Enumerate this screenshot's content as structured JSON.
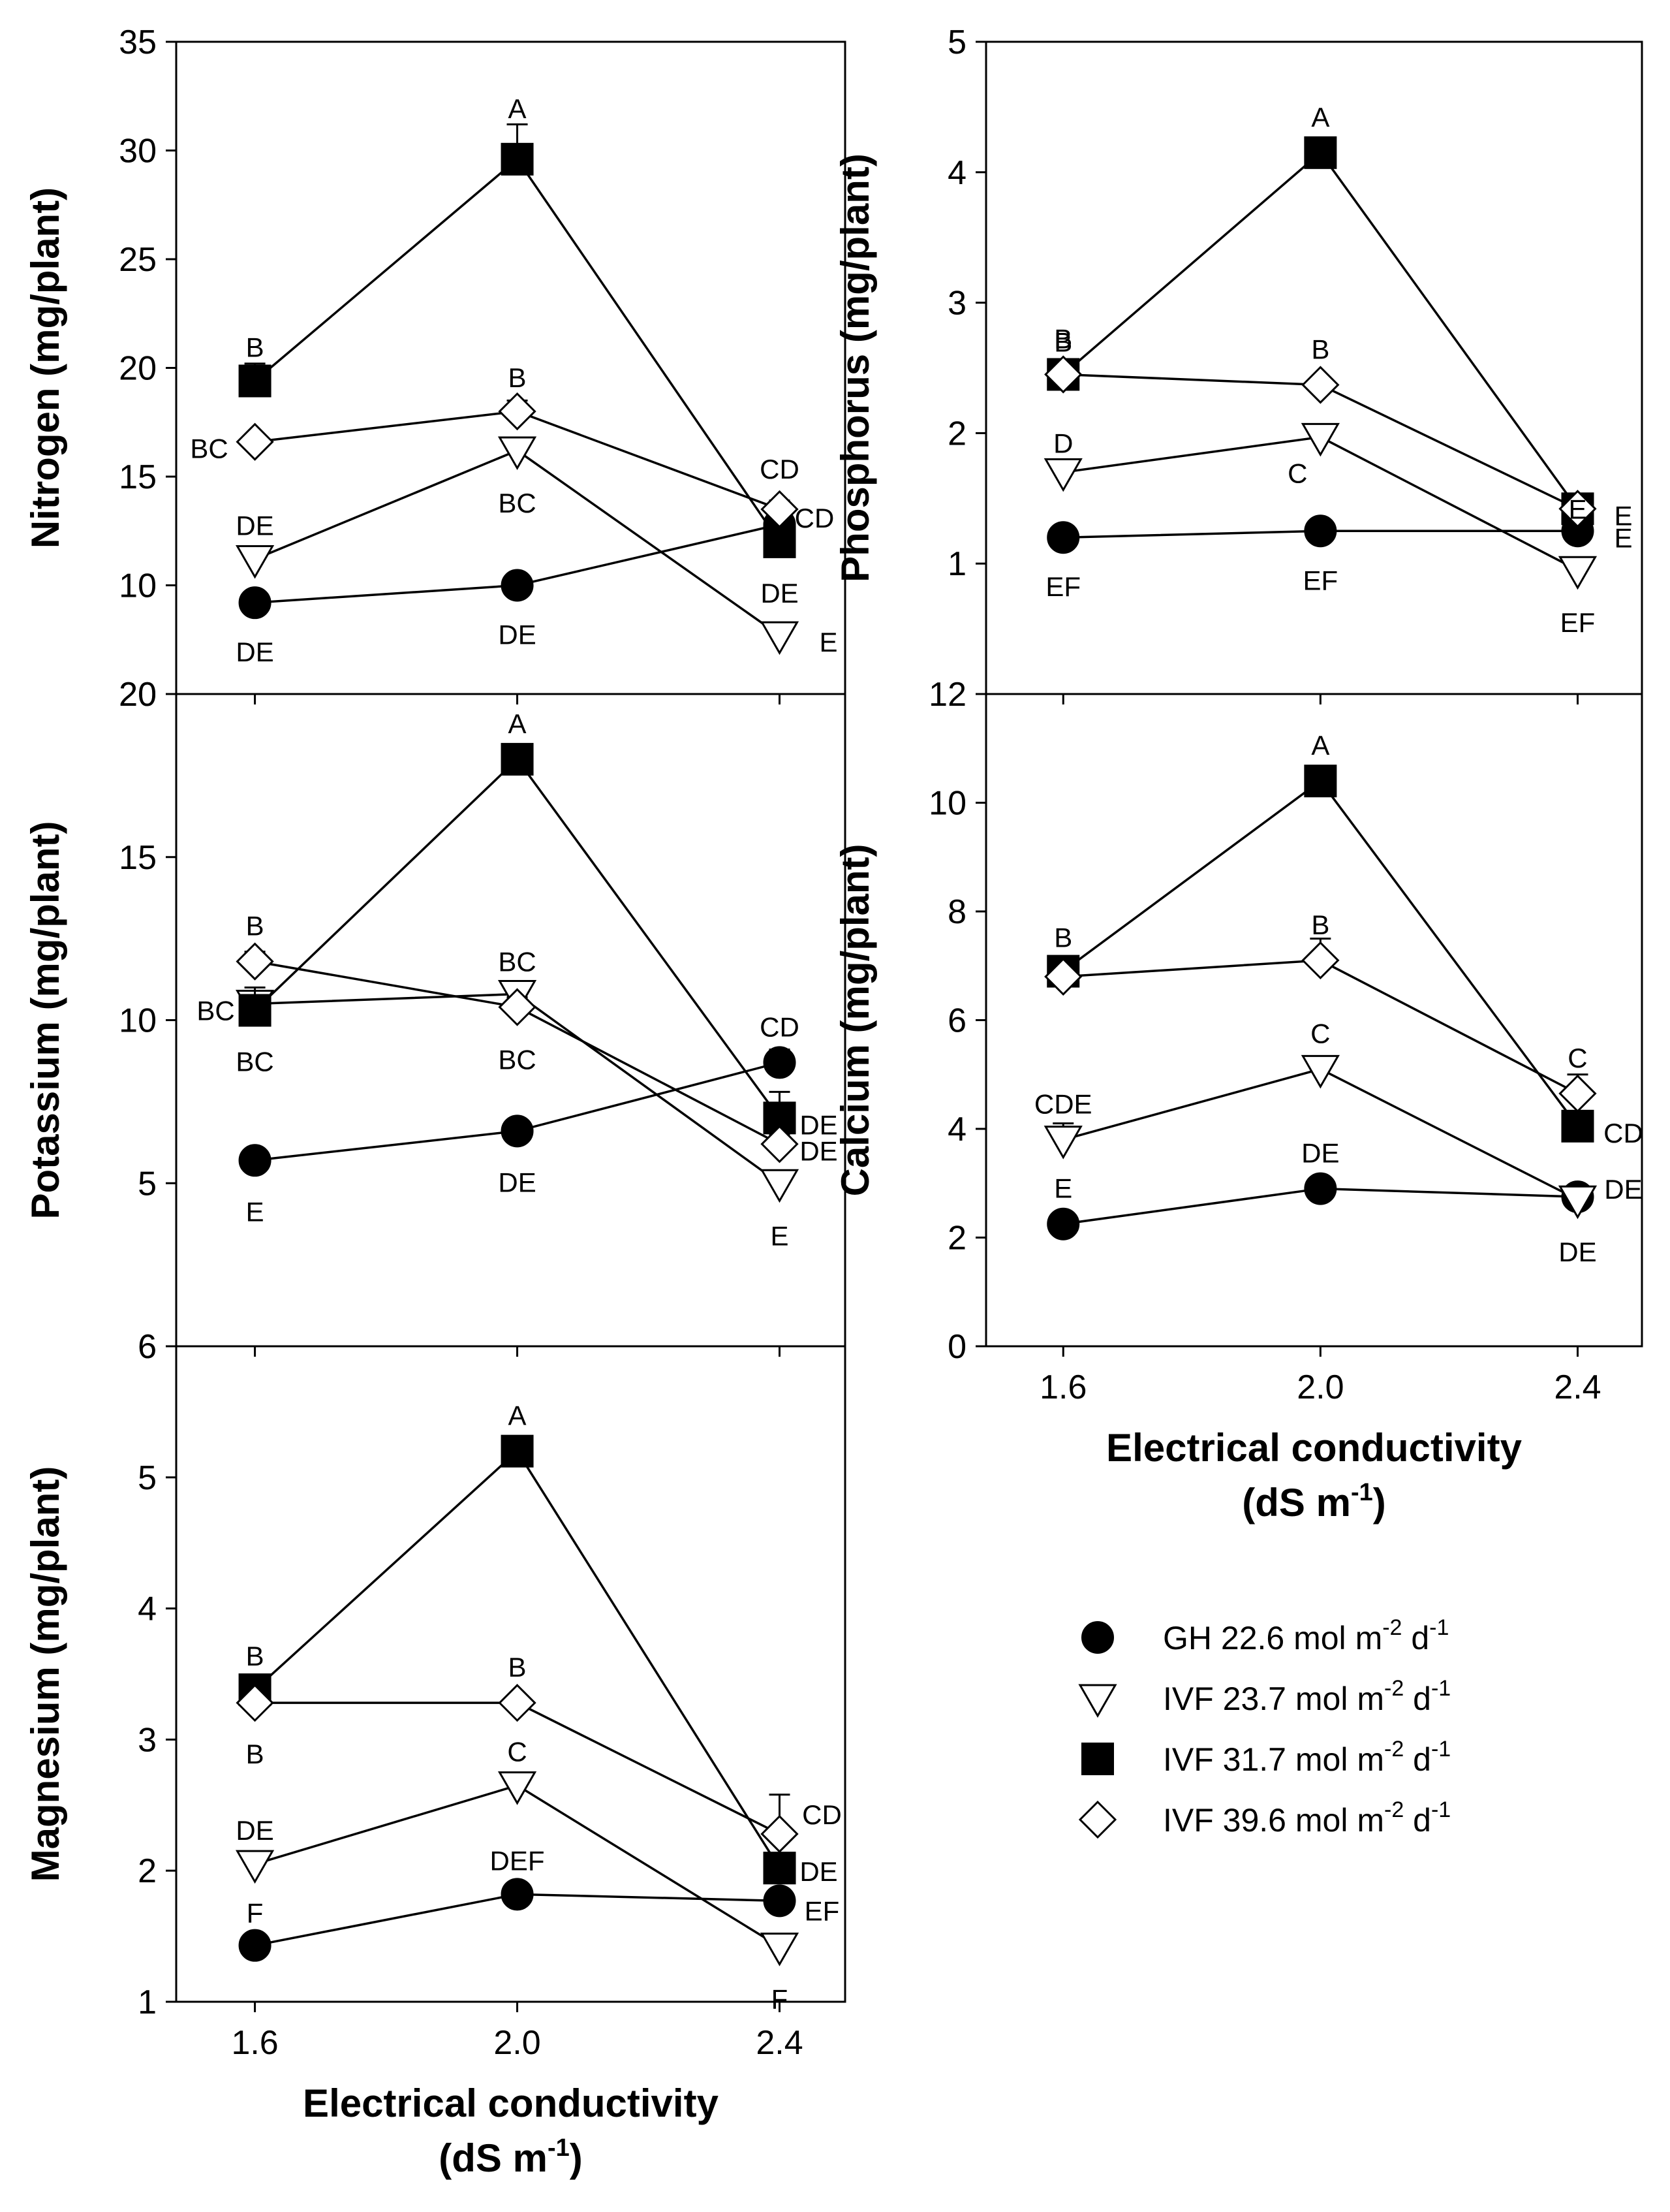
{
  "colors": {
    "ink": "#000000",
    "open_fill": "#ffffff"
  },
  "legend": {
    "placement": "right",
    "entries": [
      {
        "marker": "circle-filled",
        "parts": [
          "GH 22.6 mol ",
          "m",
          "-2",
          " d",
          "-1"
        ]
      },
      {
        "marker": "triangle-down-open",
        "parts": [
          "IVF 23.7 mol m",
          "-2",
          " d",
          "-1"
        ]
      },
      {
        "marker": "square-filled",
        "parts": [
          "IVF 31.7 mol m",
          "-2",
          " d",
          "-1"
        ]
      },
      {
        "marker": "diamond-open",
        "parts": [
          "IVF 39.6 mol m",
          "-2",
          " d",
          "-1"
        ]
      }
    ]
  },
  "x_axis": {
    "title_line1": "Electrical conductivity",
    "title_line2_parts": [
      "(dS m",
      "-1",
      ")"
    ],
    "ticks": [
      1.6,
      2.0,
      2.4
    ],
    "tick_labels": [
      "1.6",
      "2.0",
      "2.4"
    ],
    "xlim": [
      1.48,
      2.5
    ]
  },
  "chart_data": [
    {
      "type": "line",
      "panel": "nitrogen",
      "ylabel": "Nitrogen (mg/plant)",
      "x": [
        1.6,
        2.0,
        2.4
      ],
      "ylim": [
        5,
        35
      ],
      "yticks": [
        10,
        15,
        20,
        25,
        30,
        35
      ],
      "ytick_labels": [
        "10",
        "15",
        "20",
        "25",
        "30",
        "35"
      ],
      "bottom_tick_label": "20",
      "series": [
        {
          "marker": "circle-filled",
          "values": [
            9.2,
            10.0,
            12.8
          ],
          "errors": [
            0.3,
            0.3,
            0.3
          ],
          "letters": [
            "DE",
            "DE",
            ""
          ]
        },
        {
          "marker": "triangle-down-open",
          "values": [
            11.2,
            16.2,
            7.7
          ],
          "errors": [
            0.3,
            0.4,
            0.3
          ],
          "letters": [
            "DE",
            "BC",
            "E"
          ]
        },
        {
          "marker": "square-filled",
          "values": [
            19.4,
            29.6,
            12.0
          ],
          "errors": [
            0.8,
            1.6,
            0.6
          ],
          "letters": [
            "B",
            "A",
            "DE"
          ]
        },
        {
          "marker": "diamond-open",
          "values": [
            16.6,
            18.0,
            13.5
          ],
          "errors": [
            0.3,
            0.5,
            0.4
          ],
          "letters": [
            "BC",
            "B",
            "CD"
          ]
        }
      ],
      "extra_letters": [
        "CD"
      ]
    },
    {
      "type": "line",
      "panel": "phosphorus",
      "ylabel": "Phosphorus (mg/plant)",
      "x": [
        1.6,
        2.0,
        2.4
      ],
      "ylim": [
        0,
        5
      ],
      "yticks": [
        1,
        2,
        3,
        4,
        5
      ],
      "ytick_labels": [
        "1",
        "2",
        "3",
        "4",
        "5"
      ],
      "series": [
        {
          "marker": "circle-filled",
          "values": [
            1.2,
            1.25,
            1.25
          ],
          "errors": [
            0.03,
            0.03,
            0.03
          ],
          "letters": [
            "EF",
            "EF",
            "E"
          ]
        },
        {
          "marker": "triangle-down-open",
          "values": [
            1.7,
            1.97,
            0.95
          ],
          "errors": [
            0.04,
            0.05,
            0.04
          ],
          "letters": [
            "D",
            "C",
            "EF"
          ]
        },
        {
          "marker": "square-filled",
          "values": [
            2.45,
            4.15,
            1.42
          ],
          "errors": [
            0.05,
            0.08,
            0.04
          ],
          "letters": [
            "B",
            "A",
            "E"
          ]
        },
        {
          "marker": "diamond-open",
          "values": [
            2.45,
            2.37,
            1.42
          ],
          "errors": [
            0.04,
            0.04,
            0.04
          ],
          "letters": [
            "B",
            "B",
            "E"
          ]
        }
      ]
    },
    {
      "type": "line",
      "panel": "potassium",
      "ylabel": "Potassium (mg/plant)",
      "x": [
        1.6,
        2.0,
        2.4
      ],
      "ylim": [
        0,
        20
      ],
      "yticks": [
        5,
        10,
        15,
        20
      ],
      "ytick_labels": [
        "5",
        "10",
        "15",
        "20"
      ],
      "bottom_tick_label": "6",
      "series": [
        {
          "marker": "circle-filled",
          "values": [
            5.7,
            6.6,
            8.7
          ],
          "errors": [
            0.2,
            0.2,
            0.4
          ],
          "letters": [
            "E",
            "DE",
            "CD"
          ]
        },
        {
          "marker": "triangle-down-open",
          "values": [
            10.5,
            10.8,
            5.0
          ],
          "errors": [
            0.3,
            0.3,
            0.3
          ],
          "letters": [
            "BC",
            "BC",
            "E"
          ]
        },
        {
          "marker": "square-filled",
          "values": [
            10.3,
            18.0,
            7.0
          ],
          "errors": [
            0.7,
            0.2,
            0.8
          ],
          "letters": [
            "BC",
            "A",
            "DE"
          ]
        },
        {
          "marker": "diamond-open",
          "values": [
            11.8,
            10.4,
            6.2
          ],
          "errors": [
            0.3,
            0.3,
            0.3
          ],
          "letters": [
            "B",
            "BC",
            "DE"
          ]
        }
      ]
    },
    {
      "type": "line",
      "panel": "calcium",
      "ylabel": "Calcium (mg/plant)",
      "x": [
        1.6,
        2.0,
        2.4
      ],
      "ylim": [
        0,
        12
      ],
      "yticks": [
        0,
        2,
        4,
        6,
        8,
        10,
        12
      ],
      "ytick_labels": [
        "0",
        "2",
        "4",
        "6",
        "8",
        "10",
        "12"
      ],
      "series": [
        {
          "marker": "circle-filled",
          "values": [
            2.25,
            2.9,
            2.75
          ],
          "errors": [
            0.08,
            0.08,
            0.08
          ],
          "letters": [
            "E",
            "DE",
            "DE"
          ]
        },
        {
          "marker": "triangle-down-open",
          "values": [
            3.8,
            5.1,
            2.7
          ],
          "errors": [
            0.3,
            0.15,
            0.1
          ],
          "letters": [
            "CDE",
            "C",
            "DE"
          ]
        },
        {
          "marker": "square-filled",
          "values": [
            6.9,
            10.4,
            4.05
          ],
          "errors": [
            0.15,
            0.2,
            0.15
          ],
          "letters": [
            "B",
            "A",
            "CD"
          ]
        },
        {
          "marker": "diamond-open",
          "values": [
            6.8,
            7.1,
            4.65
          ],
          "errors": [
            0.15,
            0.4,
            0.35
          ],
          "letters": [
            "",
            "B",
            "C"
          ]
        }
      ]
    },
    {
      "type": "line",
      "panel": "magnesium",
      "ylabel": "Magnesium (mg/plant)",
      "x": [
        1.6,
        2.0,
        2.4
      ],
      "ylim": [
        1,
        6
      ],
      "yticks": [
        1,
        2,
        3,
        4,
        5,
        6
      ],
      "ytick_labels": [
        "1",
        "2",
        "3",
        "4",
        "5",
        "6"
      ],
      "series": [
        {
          "marker": "circle-filled",
          "values": [
            1.43,
            1.82,
            1.77
          ],
          "errors": [
            0.04,
            0.04,
            0.05
          ],
          "letters": [
            "F",
            "DEF",
            "EF"
          ]
        },
        {
          "marker": "triangle-down-open",
          "values": [
            2.05,
            2.65,
            1.42
          ],
          "errors": [
            0.05,
            0.05,
            0.05
          ],
          "letters": [
            "DE",
            "C",
            "F"
          ]
        },
        {
          "marker": "square-filled",
          "values": [
            3.38,
            5.2,
            2.02
          ],
          "errors": [
            0.05,
            0.05,
            0.1
          ],
          "letters": [
            "B",
            "A",
            "DE"
          ]
        },
        {
          "marker": "diamond-open",
          "values": [
            3.28,
            3.28,
            2.28
          ],
          "errors": [
            0.04,
            0.05,
            0.3
          ],
          "letters": [
            "B",
            "B",
            "CD"
          ]
        }
      ]
    }
  ]
}
